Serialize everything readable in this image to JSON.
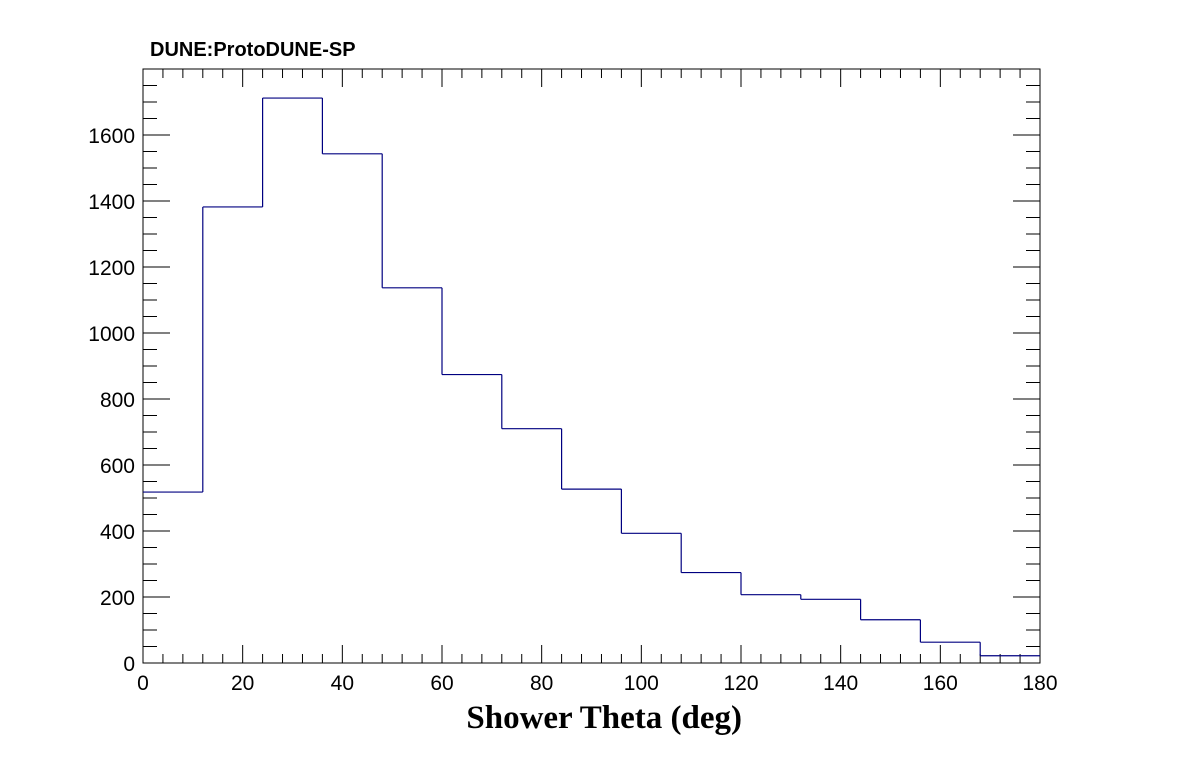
{
  "chart_data": {
    "type": "bar",
    "style": "step-histogram",
    "title": "DUNE:ProtoDUNE-SP",
    "xlabel": "Shower Theta (deg)",
    "ylabel": "",
    "xlim": [
      0,
      180
    ],
    "ylim": [
      0,
      1800
    ],
    "bin_edges": [
      0,
      12,
      24,
      36,
      48,
      60,
      72,
      84,
      96,
      108,
      120,
      132,
      144,
      156,
      168,
      180
    ],
    "values": [
      518,
      1382,
      1712,
      1543,
      1137,
      874,
      710,
      527,
      393,
      274,
      207,
      193,
      131,
      63,
      22
    ],
    "x_ticks": [
      "0",
      "20",
      "40",
      "60",
      "80",
      "100",
      "120",
      "140",
      "160",
      "180"
    ],
    "y_ticks": [
      "0",
      "200",
      "400",
      "600",
      "800",
      "1000",
      "1200",
      "1400",
      "1600"
    ],
    "line_color": "#000080",
    "grid": false,
    "legend": "none"
  }
}
